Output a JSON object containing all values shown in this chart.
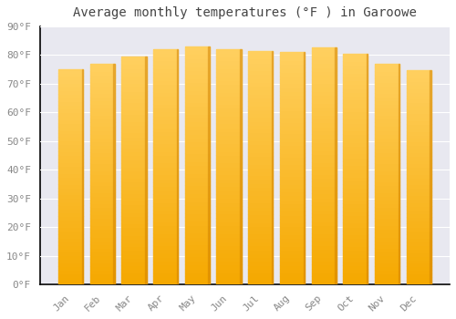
{
  "title": "Average monthly temperatures (°F ) in Garoowe",
  "months": [
    "Jan",
    "Feb",
    "Mar",
    "Apr",
    "May",
    "Jun",
    "Jul",
    "Aug",
    "Sep",
    "Oct",
    "Nov",
    "Dec"
  ],
  "values": [
    75.2,
    77.0,
    79.5,
    82.2,
    83.1,
    82.2,
    81.5,
    81.0,
    82.7,
    80.6,
    77.0,
    74.7
  ],
  "bar_color_bottom": "#F5A800",
  "bar_color_top": "#FFD060",
  "bar_edge_color": "#C8C8C8",
  "plot_bg_color": "#E8E8F0",
  "fig_bg_color": "#FFFFFF",
  "grid_color": "#FFFFFF",
  "title_color": "#444444",
  "label_color": "#888888",
  "spine_color": "#000000",
  "ylim": [
    0,
    90
  ],
  "yticks": [
    0,
    10,
    20,
    30,
    40,
    50,
    60,
    70,
    80,
    90
  ],
  "ytick_labels": [
    "0°F",
    "10°F",
    "20°F",
    "30°F",
    "40°F",
    "50°F",
    "60°F",
    "70°F",
    "80°F",
    "90°F"
  ],
  "title_fontsize": 10,
  "tick_fontsize": 8,
  "bar_width": 0.78
}
